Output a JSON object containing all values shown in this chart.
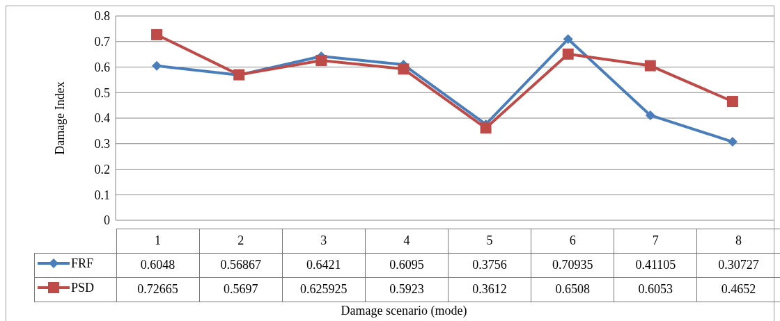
{
  "chart_data": {
    "type": "line",
    "xlabel": "Damage scenario (mode)",
    "ylabel": "Damage Index",
    "categories": [
      "1",
      "2",
      "3",
      "4",
      "5",
      "6",
      "7",
      "8"
    ],
    "series": [
      {
        "name": "FRF",
        "color": "#4a7ebb",
        "marker": "diamond",
        "values": [
          0.6048,
          0.56867,
          0.6421,
          0.6095,
          0.3756,
          0.70935,
          0.41105,
          0.30727
        ]
      },
      {
        "name": "PSD",
        "color": "#be4b48",
        "marker": "square",
        "values": [
          0.72665,
          0.5697,
          0.625925,
          0.5923,
          0.3612,
          0.6508,
          0.6053,
          0.4652
        ]
      }
    ],
    "ylim": [
      0,
      0.8
    ],
    "yticks": [
      0,
      0.1,
      0.2,
      0.3,
      0.4,
      0.5,
      0.6,
      0.7,
      0.8
    ],
    "grid": "y",
    "data_labels": true,
    "legend": "bottom",
    "line_style": "solid"
  }
}
